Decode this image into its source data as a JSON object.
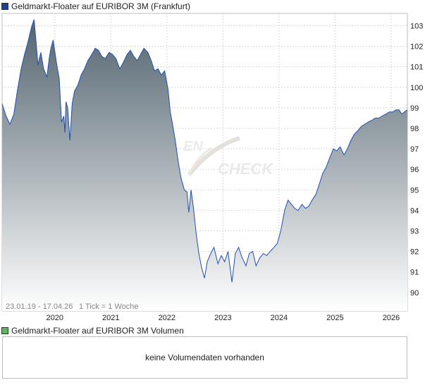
{
  "price_chart": {
    "title": "Geldmarkt-Floater auf EURIBOR 3M (Frankfurt)",
    "swatch_color": "#1f3f8f",
    "range_label": "23.01.19 - 17.04.26",
    "tick_label": "1 Tick = 1 Woche",
    "watermark": "CHECK"
  },
  "volume_chart": {
    "title": "Geldmarkt-Floater auf EURIBOR 3M Volumen",
    "swatch_color": "#5cb85c",
    "empty_message": "keine Volumendaten vorhanden"
  },
  "chart_data": {
    "type": "area",
    "line_color": "#1f4fb4",
    "fill_gradient": [
      "#53646f",
      "#ffffff"
    ],
    "xlabel": "",
    "ylabel": "",
    "ylim": [
      89.1,
      103.6
    ],
    "xlim": [
      2019.06,
      2026.29
    ],
    "y_ticks": [
      "103",
      "102",
      "101",
      "100",
      "99",
      "98",
      "97",
      "96",
      "95",
      "94",
      "93",
      "92",
      "91",
      "90"
    ],
    "x_ticks": [
      "2020",
      "2021",
      "2022",
      "2023",
      "2024",
      "2025",
      "2026"
    ],
    "grid": true,
    "series": [
      {
        "x": [
          2019.06,
          2019.13,
          2019.2,
          2019.27,
          2019.33,
          2019.4,
          2019.46,
          2019.52,
          2019.58,
          2019.63,
          2019.66,
          2019.7,
          2019.75,
          2019.8,
          2019.86,
          2019.9,
          2019.93,
          2019.97,
          2020.03,
          2020.08,
          2020.12,
          2020.16,
          2020.18,
          2020.2,
          2020.23,
          2020.27,
          2020.31,
          2020.35,
          2020.41,
          2020.47,
          2020.53,
          2020.59,
          2020.66,
          2020.72,
          2020.78,
          2020.84,
          2020.9,
          2020.97,
          2021.03,
          2021.09,
          2021.16,
          2021.22,
          2021.29,
          2021.35,
          2021.41,
          2021.47,
          2021.53,
          2021.59,
          2021.66,
          2021.72,
          2021.78,
          2021.84,
          2021.9,
          2021.96,
          2022.02,
          2022.06,
          2022.1,
          2022.15,
          2022.2,
          2022.25,
          2022.31,
          2022.36,
          2022.39,
          2022.43,
          2022.47,
          2022.52,
          2022.57,
          2022.62,
          2022.67,
          2022.72,
          2022.78,
          2022.84,
          2022.91,
          2022.97,
          2023.03,
          2023.09,
          2023.16,
          2023.22,
          2023.28,
          2023.34,
          2023.41,
          2023.47,
          2023.53,
          2023.59,
          2023.66,
          2023.72,
          2023.78,
          2023.84,
          2023.91,
          2023.97,
          2024.03,
          2024.1,
          2024.16,
          2024.22,
          2024.28,
          2024.34,
          2024.41,
          2024.47,
          2024.53,
          2024.59,
          2024.66,
          2024.72,
          2024.78,
          2024.84,
          2024.91,
          2024.97,
          2025.03,
          2025.09,
          2025.16,
          2025.22,
          2025.28,
          2025.34,
          2025.41,
          2025.47,
          2025.53,
          2025.59,
          2025.66,
          2025.72,
          2025.78,
          2025.84,
          2025.91,
          2025.97,
          2026.03,
          2026.09,
          2026.14,
          2026.19,
          2026.24,
          2026.29
        ],
        "y": [
          99.2,
          98.6,
          98.2,
          98.7,
          99.8,
          100.9,
          101.6,
          102.2,
          102.9,
          103.3,
          102.4,
          101.1,
          101.7,
          100.9,
          100.5,
          101.4,
          101.9,
          102.3,
          101.2,
          100.4,
          98.3,
          98.6,
          97.8,
          99.3,
          99.0,
          97.4,
          99.2,
          99.8,
          100.1,
          100.6,
          100.9,
          101.3,
          101.6,
          101.9,
          101.8,
          101.5,
          101.4,
          101.7,
          101.6,
          101.4,
          100.9,
          101.2,
          101.6,
          101.8,
          101.5,
          101.3,
          101.6,
          101.9,
          101.7,
          101.3,
          100.8,
          100.9,
          100.6,
          100.8,
          99.9,
          98.8,
          98.2,
          97.4,
          96.4,
          95.6,
          95.0,
          94.9,
          93.9,
          95.0,
          94.2,
          92.9,
          91.9,
          91.2,
          90.7,
          91.5,
          91.9,
          92.2,
          91.4,
          91.8,
          91.5,
          92.0,
          90.5,
          91.9,
          92.2,
          91.7,
          91.3,
          91.9,
          92.0,
          91.3,
          91.7,
          91.9,
          91.8,
          92.0,
          92.2,
          92.4,
          93.0,
          94.0,
          94.5,
          94.3,
          94.1,
          94.0,
          94.3,
          94.1,
          94.2,
          94.5,
          94.8,
          95.3,
          95.8,
          96.1,
          96.6,
          97.0,
          96.9,
          97.1,
          96.7,
          97.0,
          97.4,
          97.7,
          97.9,
          98.1,
          98.2,
          98.3,
          98.4,
          98.5,
          98.5,
          98.6,
          98.7,
          98.8,
          98.8,
          98.9,
          98.9,
          98.7,
          98.8,
          98.9
        ]
      }
    ]
  }
}
